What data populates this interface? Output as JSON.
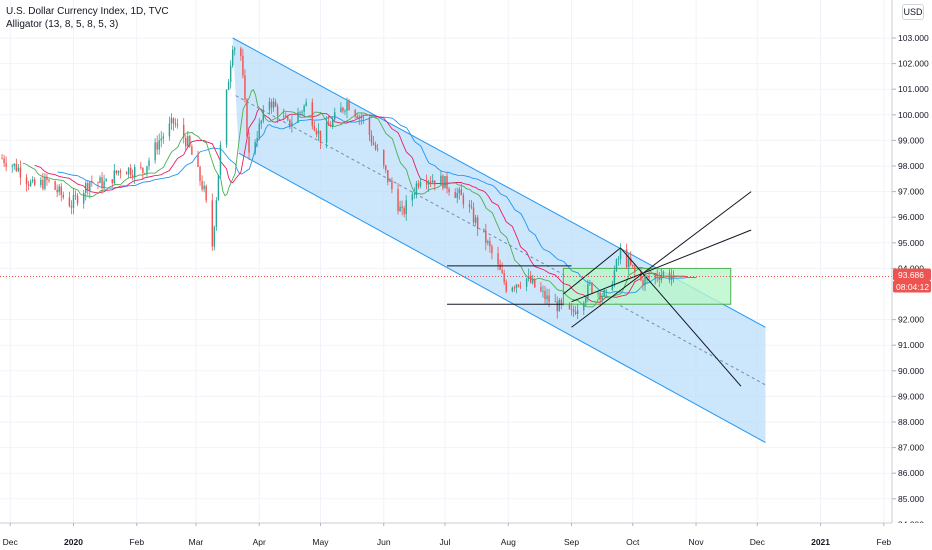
{
  "header": {
    "title": "U.S. Dollar Currency Index, 1D, TVC",
    "indicator": "Alligator (13, 8, 5, 8, 5, 3)",
    "currency_button": "USD"
  },
  "colors": {
    "up_candle": "#26a69a",
    "down_candle": "#ef5350",
    "jaw": "#2196f3",
    "teeth": "#e91e63",
    "lips": "#4caf50",
    "channel_fill": "#bbdefb",
    "channel_line": "#2196f3",
    "box_fill": "#b9f6ca",
    "box_line": "#4caf50",
    "price_tag": "#ef5350",
    "countdown_tag": "#ef5350"
  },
  "price_axis": {
    "ticks": [
      "103.000",
      "102.000",
      "101.000",
      "100.000",
      "99.000",
      "98.000",
      "97.000",
      "96.000",
      "95.000",
      "94.000",
      "92.000",
      "91.000",
      "90.000",
      "89.000",
      "88.000",
      "87.000",
      "86.000",
      "85.000",
      "84.000"
    ],
    "current_price": "93.686",
    "countdown": "08:04:12"
  },
  "time_axis": {
    "labels": [
      "Dec",
      "2020",
      "Feb",
      "Mar",
      "Apr",
      "May",
      "Jun",
      "Jul",
      "Aug",
      "Sep",
      "Oct",
      "Nov",
      "Dec",
      "2021",
      "Feb"
    ]
  },
  "chart_data": {
    "type": "candlestick",
    "symbol": "U.S. Dollar Currency Index",
    "interval": "1D",
    "source": "TVC",
    "indicator": "Alligator (13, 8, 5, 8, 5, 3)",
    "ylim": [
      83.7,
      104.2
    ],
    "x_range": [
      "2019-11-26",
      "2021-02-05"
    ],
    "last_price": 93.686,
    "approx_closes": [
      {
        "date": "2019-11-27",
        "close": 98.3
      },
      {
        "date": "2019-12-05",
        "close": 97.9
      },
      {
        "date": "2019-12-12",
        "close": 97.2
      },
      {
        "date": "2019-12-19",
        "close": 97.4
      },
      {
        "date": "2019-12-31",
        "close": 96.5
      },
      {
        "date": "2020-01-09",
        "close": 97.4
      },
      {
        "date": "2020-01-17",
        "close": 97.3
      },
      {
        "date": "2020-01-24",
        "close": 97.9
      },
      {
        "date": "2020-02-04",
        "close": 97.8
      },
      {
        "date": "2020-02-12",
        "close": 99.0
      },
      {
        "date": "2020-02-19",
        "close": 99.7
      },
      {
        "date": "2020-02-26",
        "close": 98.9
      },
      {
        "date": "2020-03-05",
        "close": 97.0
      },
      {
        "date": "2020-03-09",
        "close": 94.9
      },
      {
        "date": "2020-03-13",
        "close": 98.7
      },
      {
        "date": "2020-03-19",
        "close": 102.8
      },
      {
        "date": "2020-03-23",
        "close": 102.3
      },
      {
        "date": "2020-03-27",
        "close": 98.4
      },
      {
        "date": "2020-04-06",
        "close": 100.6
      },
      {
        "date": "2020-04-15",
        "close": 99.6
      },
      {
        "date": "2020-04-24",
        "close": 100.4
      },
      {
        "date": "2020-05-01",
        "close": 99.1
      },
      {
        "date": "2020-05-14",
        "close": 100.5
      },
      {
        "date": "2020-05-22",
        "close": 99.8
      },
      {
        "date": "2020-06-01",
        "close": 97.9
      },
      {
        "date": "2020-06-10",
        "close": 96.1
      },
      {
        "date": "2020-06-19",
        "close": 97.6
      },
      {
        "date": "2020-06-30",
        "close": 97.4
      },
      {
        "date": "2020-07-10",
        "close": 96.7
      },
      {
        "date": "2020-07-21",
        "close": 95.1
      },
      {
        "date": "2020-07-31",
        "close": 93.3
      },
      {
        "date": "2020-08-10",
        "close": 93.6
      },
      {
        "date": "2020-08-20",
        "close": 92.8
      },
      {
        "date": "2020-09-01",
        "close": 92.2
      },
      {
        "date": "2020-09-10",
        "close": 93.3
      },
      {
        "date": "2020-09-18",
        "close": 92.9
      },
      {
        "date": "2020-09-25",
        "close": 94.6
      },
      {
        "date": "2020-10-05",
        "close": 93.5
      },
      {
        "date": "2020-10-15",
        "close": 93.8
      },
      {
        "date": "2020-10-21",
        "close": 93.686
      }
    ],
    "drawings": [
      {
        "type": "parallel_channel",
        "start": {
          "date": "2020-03-19",
          "price": 103.0
        },
        "end": {
          "date": "2020-12-05",
          "price": 91.7
        },
        "lower_start": {
          "date": "2020-03-22",
          "price": 98.5
        },
        "lower_end": {
          "date": "2020-12-05",
          "price": 87.2
        }
      },
      {
        "type": "rectangle",
        "from": {
          "date": "2020-08-28",
          "price": 94.0
        },
        "to": {
          "date": "2020-11-18",
          "price": 92.6
        }
      },
      {
        "type": "trend_line",
        "from": {
          "date": "2020-07-02",
          "price": 94.1
        },
        "to": {
          "date": "2020-09-01",
          "price": 94.1
        }
      },
      {
        "type": "trend_line",
        "from": {
          "date": "2020-07-02",
          "price": 92.6
        },
        "to": {
          "date": "2020-08-28",
          "price": 92.6
        }
      },
      {
        "type": "trend_line",
        "from": {
          "date": "2020-09-01",
          "price": 91.7
        },
        "to": {
          "date": "2020-11-28",
          "price": 97.0
        }
      },
      {
        "type": "trend_line",
        "from": {
          "date": "2020-09-01",
          "price": 92.7
        },
        "to": {
          "date": "2020-11-28",
          "price": 95.5
        }
      },
      {
        "type": "trend_line",
        "from": {
          "date": "2020-09-25",
          "price": 94.8
        },
        "to": {
          "date": "2020-11-23",
          "price": 89.4
        }
      },
      {
        "type": "trend_line",
        "from": {
          "date": "2020-08-28",
          "price": 93.0
        },
        "to": {
          "date": "2020-09-25",
          "price": 94.8
        }
      }
    ]
  }
}
